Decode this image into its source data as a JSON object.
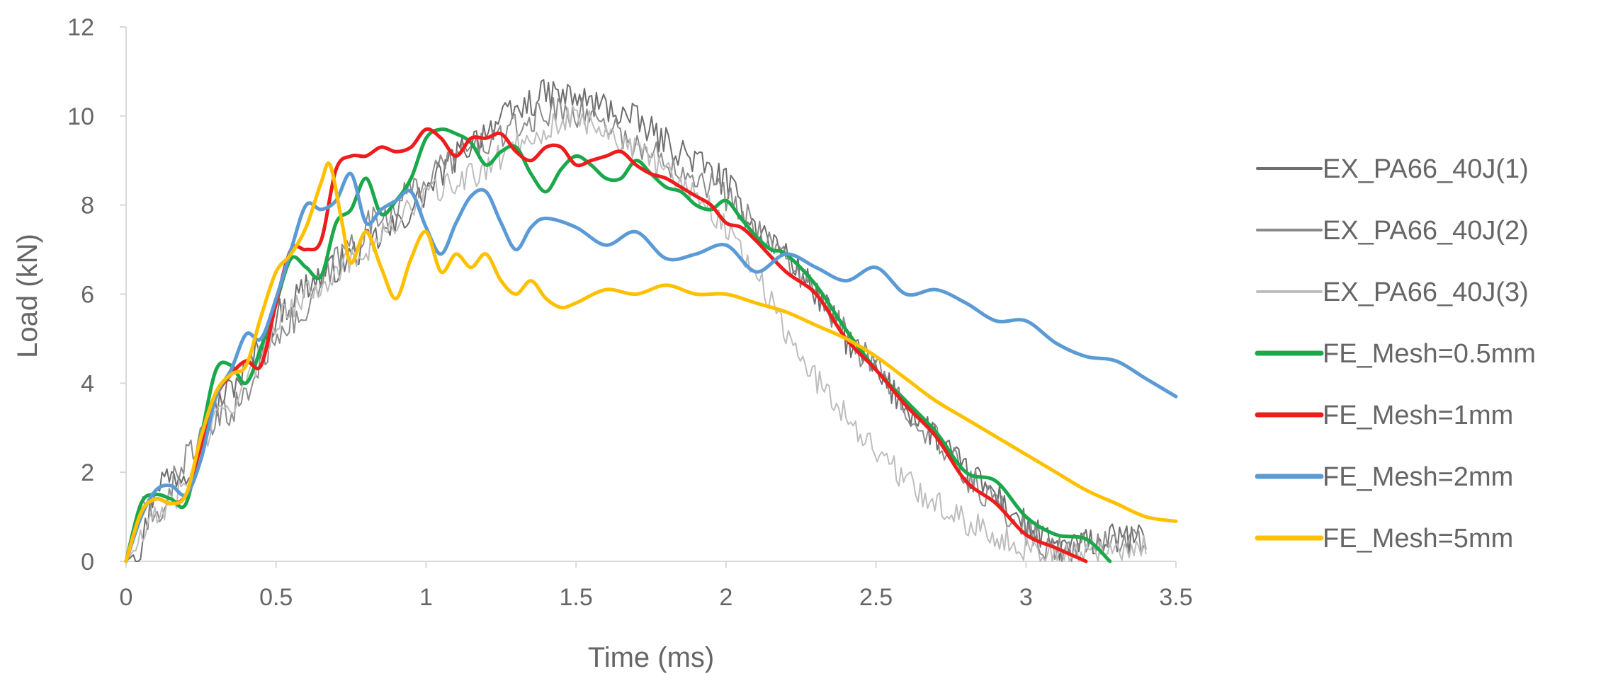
{
  "chart_data": {
    "type": "line",
    "title": "",
    "xlabel": "Time (ms)",
    "ylabel": "Load (kN)",
    "xlim": [
      0,
      3.5
    ],
    "ylim": [
      0,
      12
    ],
    "xticks": [
      0,
      0.5,
      1,
      1.5,
      2,
      2.5,
      3,
      3.5
    ],
    "xtick_labels": [
      "0",
      "0.5",
      "1",
      "1.5",
      "2",
      "2.5",
      "3",
      "3.5"
    ],
    "yticks": [
      0,
      2,
      4,
      6,
      8,
      10,
      12
    ],
    "ytick_labels": [
      "0",
      "2",
      "4",
      "6",
      "8",
      "10",
      "12"
    ],
    "grid": false,
    "legend_position": "right",
    "series": [
      {
        "name": "EX_PA66_40J(1)",
        "color": "#6e6e6e",
        "width": 2,
        "noise": 0.35,
        "x": [
          0,
          0.05,
          0.1,
          0.2,
          0.3,
          0.4,
          0.5,
          0.6,
          0.7,
          0.8,
          0.9,
          1.0,
          1.1,
          1.2,
          1.3,
          1.4,
          1.5,
          1.6,
          1.7,
          1.8,
          1.9,
          2.0,
          2.1,
          2.2,
          2.3,
          2.4,
          2.5,
          2.6,
          2.7,
          2.8,
          2.9,
          3.0,
          3.1,
          3.2,
          3.3,
          3.4
        ],
        "y": [
          0,
          0.3,
          1.8,
          2.0,
          3.5,
          4.3,
          5.5,
          6.2,
          6.6,
          7.1,
          7.5,
          8.3,
          9.1,
          9.7,
          10.1,
          10.5,
          10.4,
          10.2,
          9.9,
          9.4,
          9.0,
          8.5,
          7.5,
          6.9,
          6.0,
          5.0,
          4.2,
          3.5,
          2.8,
          2.0,
          1.5,
          0.8,
          0.3,
          0.4,
          0.5,
          0.5
        ]
      },
      {
        "name": "EX_PA66_40J(2)",
        "color": "#8c8c8c",
        "width": 2,
        "noise": 0.35,
        "x": [
          0,
          0.05,
          0.1,
          0.2,
          0.3,
          0.4,
          0.5,
          0.6,
          0.7,
          0.8,
          0.9,
          1.0,
          1.1,
          1.2,
          1.3,
          1.4,
          1.5,
          1.6,
          1.7,
          1.8,
          1.9,
          2.0,
          2.1,
          2.2,
          2.3,
          2.4,
          2.5,
          2.6,
          2.7,
          2.8,
          2.9,
          3.0,
          3.1,
          3.2,
          3.3,
          3.4
        ],
        "y": [
          0,
          1.2,
          0.9,
          2.4,
          3.1,
          3.7,
          5.2,
          5.5,
          6.8,
          7.5,
          8.0,
          8.6,
          9.1,
          9.4,
          9.7,
          10.1,
          10.1,
          9.9,
          9.3,
          9.0,
          8.7,
          8.2,
          7.5,
          6.8,
          6.0,
          5.1,
          4.3,
          3.5,
          2.7,
          1.9,
          1.3,
          0.7,
          0.2,
          0.3,
          0.5,
          0.5
        ]
      },
      {
        "name": "EX_PA66_40J(3)",
        "color": "#bdbdbd",
        "width": 2,
        "noise": 0.3,
        "x": [
          0,
          0.05,
          0.1,
          0.2,
          0.3,
          0.4,
          0.5,
          0.6,
          0.7,
          0.8,
          0.9,
          1.0,
          1.1,
          1.2,
          1.3,
          1.4,
          1.5,
          1.6,
          1.7,
          1.8,
          1.9,
          2.0,
          2.1,
          2.2,
          2.3,
          2.4,
          2.5,
          2.6,
          2.7,
          2.8,
          2.9,
          3.0,
          3.1,
          3.2,
          3.3,
          3.4
        ],
        "y": [
          0,
          0.5,
          1.0,
          1.7,
          3.2,
          3.9,
          5.4,
          6.0,
          6.5,
          7.0,
          7.6,
          8.2,
          8.5,
          8.8,
          9.4,
          9.7,
          10.0,
          9.7,
          9.2,
          8.8,
          8.3,
          7.5,
          6.5,
          5.1,
          4.1,
          3.3,
          2.5,
          1.8,
          1.3,
          0.9,
          0.6,
          0.3,
          0.1,
          0.2,
          0.3,
          0.3
        ]
      },
      {
        "name": "FE_Mesh=0.5mm",
        "color": "#1aa84b",
        "width": 5,
        "noise": 0,
        "x": [
          0,
          0.05,
          0.1,
          0.15,
          0.2,
          0.25,
          0.3,
          0.35,
          0.4,
          0.45,
          0.5,
          0.55,
          0.6,
          0.65,
          0.7,
          0.75,
          0.8,
          0.85,
          0.9,
          0.95,
          1.0,
          1.05,
          1.1,
          1.15,
          1.2,
          1.25,
          1.3,
          1.35,
          1.4,
          1.45,
          1.5,
          1.55,
          1.6,
          1.65,
          1.7,
          1.75,
          1.8,
          1.85,
          1.9,
          1.95,
          2.0,
          2.05,
          2.1,
          2.15,
          2.2,
          2.3,
          2.4,
          2.5,
          2.6,
          2.7,
          2.8,
          2.9,
          3.0,
          3.1,
          3.2,
          3.28
        ],
        "y": [
          0,
          1.3,
          1.5,
          1.4,
          1.3,
          2.8,
          4.3,
          4.4,
          4.0,
          4.8,
          5.8,
          6.8,
          6.6,
          6.4,
          7.6,
          7.9,
          8.6,
          7.8,
          8.1,
          8.6,
          9.5,
          9.7,
          9.6,
          9.4,
          8.9,
          9.2,
          9.3,
          8.7,
          8.3,
          8.8,
          9.1,
          8.9,
          8.6,
          8.6,
          9.0,
          8.7,
          8.4,
          8.3,
          8.0,
          7.9,
          8.1,
          7.7,
          7.3,
          7.0,
          6.9,
          6.2,
          5.2,
          4.3,
          3.6,
          2.9,
          2.0,
          1.8,
          1.0,
          0.6,
          0.5,
          0.0
        ]
      },
      {
        "name": "FE_Mesh=1mm",
        "color": "#ee1c1c",
        "width": 5,
        "noise": 0,
        "x": [
          0,
          0.05,
          0.1,
          0.15,
          0.2,
          0.25,
          0.3,
          0.35,
          0.4,
          0.45,
          0.5,
          0.55,
          0.6,
          0.65,
          0.7,
          0.75,
          0.8,
          0.85,
          0.9,
          0.95,
          1.0,
          1.05,
          1.1,
          1.15,
          1.2,
          1.25,
          1.3,
          1.35,
          1.4,
          1.45,
          1.5,
          1.55,
          1.6,
          1.65,
          1.7,
          1.75,
          1.8,
          1.85,
          1.9,
          1.95,
          2.0,
          2.05,
          2.1,
          2.2,
          2.3,
          2.4,
          2.5,
          2.6,
          2.7,
          2.8,
          2.9,
          3.0,
          3.1,
          3.2
        ],
        "y": [
          0,
          1.1,
          1.4,
          1.3,
          1.5,
          2.6,
          3.7,
          4.2,
          4.5,
          4.4,
          5.8,
          7.0,
          7.0,
          7.2,
          8.8,
          9.1,
          9.1,
          9.3,
          9.2,
          9.3,
          9.7,
          9.5,
          9.1,
          9.5,
          9.5,
          9.6,
          9.2,
          9.0,
          9.3,
          9.3,
          8.9,
          9.0,
          9.1,
          9.2,
          8.9,
          8.7,
          8.6,
          8.4,
          8.2,
          8.0,
          7.6,
          7.5,
          7.2,
          6.5,
          6.0,
          5.0,
          4.3,
          3.5,
          2.8,
          1.8,
          1.3,
          0.6,
          0.3,
          0.0
        ]
      },
      {
        "name": "FE_Mesh=2mm",
        "color": "#5b9bd5",
        "width": 5,
        "noise": 0,
        "x": [
          0,
          0.05,
          0.1,
          0.15,
          0.2,
          0.25,
          0.3,
          0.35,
          0.4,
          0.45,
          0.5,
          0.55,
          0.6,
          0.65,
          0.7,
          0.75,
          0.8,
          0.85,
          0.9,
          0.95,
          1.0,
          1.05,
          1.1,
          1.15,
          1.2,
          1.25,
          1.3,
          1.35,
          1.4,
          1.5,
          1.6,
          1.7,
          1.8,
          1.9,
          2.0,
          2.1,
          2.2,
          2.3,
          2.4,
          2.5,
          2.6,
          2.7,
          2.8,
          2.9,
          3.0,
          3.1,
          3.2,
          3.3,
          3.4,
          3.5
        ],
        "y": [
          0,
          1.0,
          1.6,
          1.7,
          1.5,
          2.3,
          3.7,
          4.3,
          5.1,
          5.0,
          5.9,
          7.0,
          8.0,
          7.9,
          8.1,
          8.7,
          7.6,
          7.9,
          8.1,
          8.3,
          7.5,
          6.9,
          7.6,
          8.2,
          8.3,
          7.6,
          7.0,
          7.5,
          7.7,
          7.5,
          7.1,
          7.4,
          6.8,
          6.9,
          7.1,
          6.5,
          6.9,
          6.6,
          6.3,
          6.6,
          6.0,
          6.1,
          5.8,
          5.4,
          5.4,
          4.9,
          4.6,
          4.5,
          4.1,
          3.7
        ]
      },
      {
        "name": "FE_Mesh=5mm",
        "color": "#ffc000",
        "width": 5,
        "noise": 0,
        "x": [
          0,
          0.05,
          0.1,
          0.15,
          0.2,
          0.25,
          0.3,
          0.35,
          0.4,
          0.45,
          0.5,
          0.55,
          0.6,
          0.65,
          0.68,
          0.72,
          0.75,
          0.8,
          0.85,
          0.9,
          0.95,
          1.0,
          1.05,
          1.1,
          1.15,
          1.2,
          1.25,
          1.3,
          1.35,
          1.4,
          1.45,
          1.5,
          1.6,
          1.7,
          1.8,
          1.9,
          2.0,
          2.1,
          2.2,
          2.3,
          2.4,
          2.5,
          2.6,
          2.7,
          2.8,
          2.9,
          3.0,
          3.1,
          3.2,
          3.3,
          3.4,
          3.5
        ],
        "y": [
          0,
          1.1,
          1.4,
          1.3,
          1.5,
          2.8,
          3.8,
          4.2,
          4.4,
          5.5,
          6.5,
          6.9,
          7.5,
          8.5,
          8.9,
          7.6,
          6.7,
          7.4,
          6.6,
          5.9,
          6.8,
          7.4,
          6.5,
          6.9,
          6.6,
          6.9,
          6.3,
          6.0,
          6.3,
          5.9,
          5.7,
          5.8,
          6.1,
          6.0,
          6.2,
          6.0,
          6.0,
          5.8,
          5.6,
          5.3,
          5.0,
          4.6,
          4.1,
          3.6,
          3.2,
          2.8,
          2.4,
          2.0,
          1.6,
          1.3,
          1.0,
          0.9
        ]
      }
    ]
  }
}
